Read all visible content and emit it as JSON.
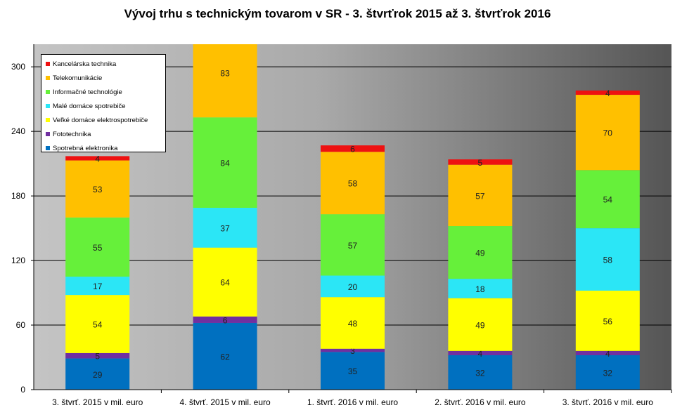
{
  "chart_data": {
    "type": "bar",
    "stacked": true,
    "title": "Vývoj trhu s technickým tovarom v SR - 3. štvrťrok 2015 až 3. štvrťrok  2016",
    "xlabel": "",
    "ylabel": "",
    "ylim": [
      0,
      321
    ],
    "yticks": [
      0,
      60,
      120,
      180,
      240,
      300
    ],
    "grid": true,
    "legend_position": "top-left",
    "categories": [
      "3. štvrť. 2015 v mil. euro",
      "4. štvrť. 2015 v mil. euro",
      "1. štvrť. 2016 v mil. euro",
      "2. štvrť. 2016 v mil. euro",
      "3. štvrť. 2016 v mil. euro"
    ],
    "series": [
      {
        "name": "Spotrebná elektronika",
        "color": "#0070C0",
        "values": [
          29,
          62,
          35,
          32,
          32
        ]
      },
      {
        "name": "Fototechnika",
        "color": "#7030A0",
        "values": [
          5,
          6,
          3,
          4,
          4
        ]
      },
      {
        "name": "Veľké domáce elektrospotrebiče",
        "color": "#FFFF00",
        "values": [
          54,
          64,
          48,
          49,
          56
        ]
      },
      {
        "name": "Malé domáce spotrebiče",
        "color": "#2BE6F6",
        "values": [
          17,
          37,
          20,
          18,
          58
        ]
      },
      {
        "name": "Informačné technológie",
        "color": "#66F03A",
        "values": [
          55,
          84,
          57,
          49,
          54
        ]
      },
      {
        "name": "Telekomunikácie",
        "color": "#FFC000",
        "values": [
          53,
          83,
          58,
          57,
          70
        ]
      },
      {
        "name": "Kancelárska technika",
        "color": "#EE1111",
        "values": [
          4,
          null,
          6,
          5,
          4
        ]
      }
    ]
  }
}
